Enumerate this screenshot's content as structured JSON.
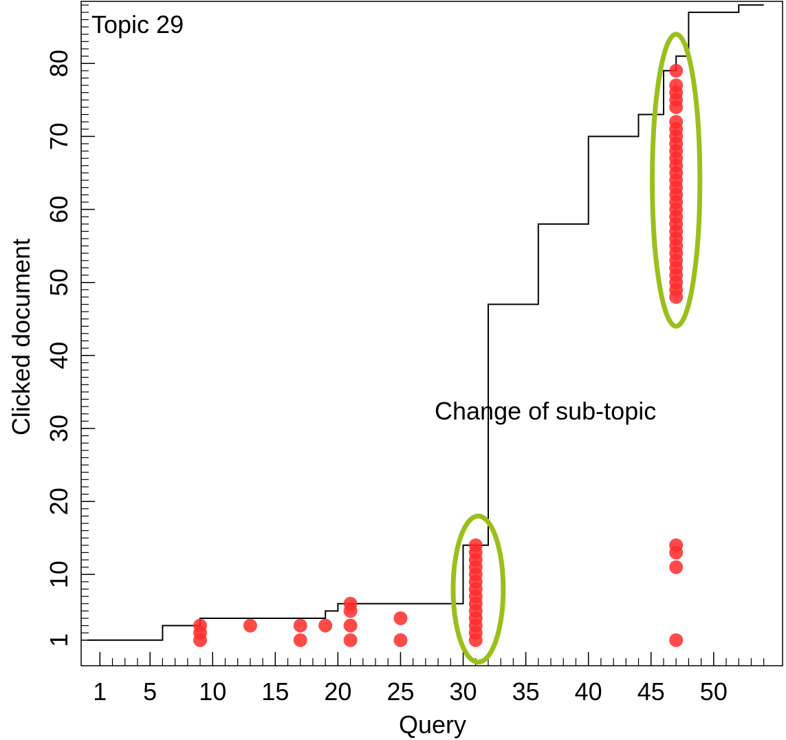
{
  "chart_data": {
    "type": "scatter",
    "title": "",
    "panel_label": "Topic 29",
    "xlabel": "Query",
    "ylabel": "Clicked document",
    "xlim": [
      -0.5,
      55.5
    ],
    "ylim": [
      -2.5,
      88.5
    ],
    "x_tick_labels": [
      1,
      5,
      10,
      15,
      20,
      25,
      30,
      35,
      40,
      45,
      50
    ],
    "y_tick_labels": [
      1,
      10,
      20,
      30,
      40,
      50,
      60,
      70,
      80
    ],
    "grid": false,
    "legend": "none",
    "colors": {
      "points": "#ff2a2a",
      "step_line": "#000000",
      "highlight": "#9bbf1a"
    },
    "step_line": {
      "x": [
        0,
        6,
        6,
        9,
        9,
        19,
        19,
        20,
        20,
        30,
        30,
        32,
        32,
        36,
        36,
        40,
        40,
        44,
        44,
        46,
        46,
        47,
        47,
        48,
        48,
        52,
        52,
        54
      ],
      "y": [
        1,
        1,
        3,
        3,
        4,
        4,
        5,
        5,
        6,
        6,
        14,
        14,
        47,
        47,
        58,
        58,
        70,
        70,
        73,
        73,
        79,
        79,
        81,
        81,
        87,
        87,
        88,
        88
      ]
    },
    "points": [
      {
        "x": 9,
        "y": [
          1,
          2,
          3
        ]
      },
      {
        "x": 13,
        "y": [
          3
        ]
      },
      {
        "x": 17,
        "y": [
          1,
          3
        ]
      },
      {
        "x": 19,
        "y": [
          3
        ]
      },
      {
        "x": 21,
        "y": [
          1,
          3,
          5,
          6
        ]
      },
      {
        "x": 25,
        "y": [
          1,
          4
        ]
      },
      {
        "x": 31,
        "y": [
          1,
          2,
          3,
          4,
          5,
          6,
          7,
          8,
          9,
          10,
          11,
          12,
          13,
          14
        ]
      },
      {
        "x": 47,
        "y": [
          1,
          11,
          13,
          14,
          48,
          49,
          50,
          51,
          52,
          53,
          54,
          55,
          56,
          57,
          58,
          59,
          60,
          61,
          62,
          63,
          64,
          65,
          66,
          67,
          68,
          69,
          70,
          71,
          72,
          74,
          75,
          76,
          77,
          79
        ]
      }
    ],
    "highlights": [
      {
        "cx": 31.2,
        "cy": 8,
        "rx": 2.0,
        "ry": 10
      },
      {
        "cx": 47,
        "cy": 64,
        "rx": 1.9,
        "ry": 20
      }
    ],
    "annotation": "Change of sub-topic"
  }
}
